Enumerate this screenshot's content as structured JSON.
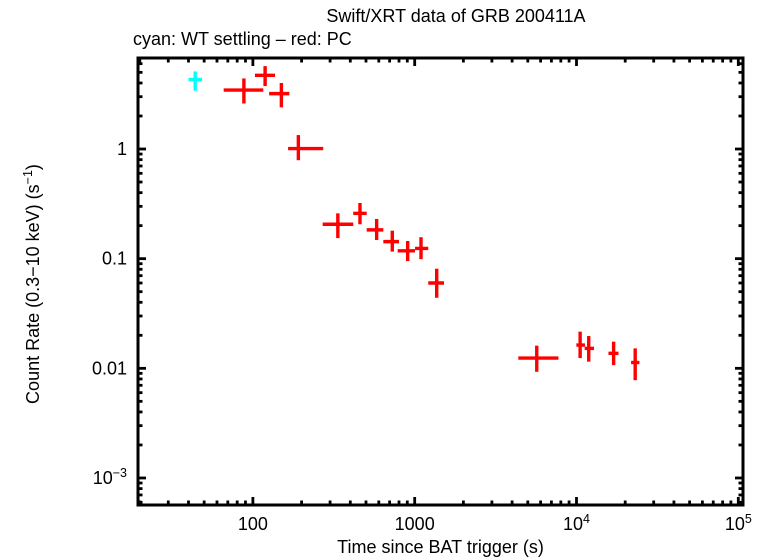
{
  "chart_data": {
    "type": "scatter",
    "title": "Swift/XRT data of GRB 200411A",
    "subtitle": "cyan: WT settling – red: PC",
    "xlabel": "Time since BAT trigger (s)",
    "ylabel": "Count Rate (0.3−10 keV) (s^{−1})",
    "xscale": "log",
    "yscale": "log",
    "xlim": [
      19.5,
      106900
    ],
    "ylim": [
      0.000567,
      6.76
    ],
    "grid": false,
    "legend_position": "subtitle-above-plot",
    "marker": "error-bar-cross",
    "x_ticks": [
      {
        "v": 100,
        "label": "100"
      },
      {
        "v": 1000,
        "label": "1000"
      },
      {
        "v": 10000,
        "label": "10^{4}"
      },
      {
        "v": 100000,
        "label": "10^{5}"
      }
    ],
    "y_ticks": [
      {
        "v": 1,
        "label": "1"
      },
      {
        "v": 0.1,
        "label": "0.1"
      },
      {
        "v": 0.01,
        "label": "0.01"
      },
      {
        "v": 0.001,
        "label": "10^{−3}"
      }
    ],
    "colors": {
      "wt_settling": "#00ffff",
      "pc": "#ff0000",
      "axis": "#000000",
      "background": "#ffffff"
    },
    "series": [
      {
        "name": "WT settling",
        "color": "#00ffff",
        "points": [
          {
            "t": 44,
            "t_lo": 40,
            "t_hi": 48.5,
            "rate": 4.3,
            "rate_lo": 3.4,
            "rate_hi": 5.1
          }
        ]
      },
      {
        "name": "PC",
        "color": "#ff0000",
        "points": [
          {
            "t": 88,
            "t_lo": 66,
            "t_hi": 116,
            "rate": 3.45,
            "rate_lo": 2.6,
            "rate_hi": 4.4
          },
          {
            "t": 119,
            "t_lo": 103,
            "t_hi": 137,
            "rate": 4.7,
            "rate_lo": 3.75,
            "rate_hi": 5.7
          },
          {
            "t": 150,
            "t_lo": 126,
            "t_hi": 168,
            "rate": 3.2,
            "rate_lo": 2.4,
            "rate_hi": 4.0
          },
          {
            "t": 191,
            "t_lo": 165,
            "t_hi": 272,
            "rate": 1.01,
            "rate_lo": 0.79,
            "rate_hi": 1.34
          },
          {
            "t": 335,
            "t_lo": 270,
            "t_hi": 417,
            "rate": 0.206,
            "rate_lo": 0.154,
            "rate_hi": 0.259
          },
          {
            "t": 459,
            "t_lo": 417,
            "t_hi": 505,
            "rate": 0.259,
            "rate_lo": 0.206,
            "rate_hi": 0.322
          },
          {
            "t": 582,
            "t_lo": 505,
            "t_hi": 640,
            "rate": 0.183,
            "rate_lo": 0.148,
            "rate_hi": 0.23
          },
          {
            "t": 727,
            "t_lo": 640,
            "t_hi": 800,
            "rate": 0.143,
            "rate_lo": 0.116,
            "rate_hi": 0.18
          },
          {
            "t": 905,
            "t_lo": 785,
            "t_hi": 1005,
            "rate": 0.118,
            "rate_lo": 0.095,
            "rate_hi": 0.145
          },
          {
            "t": 1094,
            "t_lo": 1005,
            "t_hi": 1213,
            "rate": 0.124,
            "rate_lo": 0.099,
            "rate_hi": 0.157
          },
          {
            "t": 1368,
            "t_lo": 1213,
            "t_hi": 1518,
            "rate": 0.06,
            "rate_lo": 0.044,
            "rate_hi": 0.081
          },
          {
            "t": 5680,
            "t_lo": 4370,
            "t_hi": 7730,
            "rate": 0.0124,
            "rate_lo": 0.0093,
            "rate_hi": 0.0161
          },
          {
            "t": 10530,
            "t_lo": 9980,
            "t_hi": 11280,
            "rate": 0.0163,
            "rate_lo": 0.0124,
            "rate_hi": 0.0216
          },
          {
            "t": 11900,
            "t_lo": 11230,
            "t_hi": 12830,
            "rate": 0.0152,
            "rate_lo": 0.0115,
            "rate_hi": 0.0197
          },
          {
            "t": 16960,
            "t_lo": 15760,
            "t_hi": 18180,
            "rate": 0.0137,
            "rate_lo": 0.0107,
            "rate_hi": 0.0175
          },
          {
            "t": 23050,
            "t_lo": 21740,
            "t_hi": 24490,
            "rate": 0.0113,
            "rate_lo": 0.0078,
            "rate_hi": 0.0152
          }
        ]
      }
    ]
  }
}
